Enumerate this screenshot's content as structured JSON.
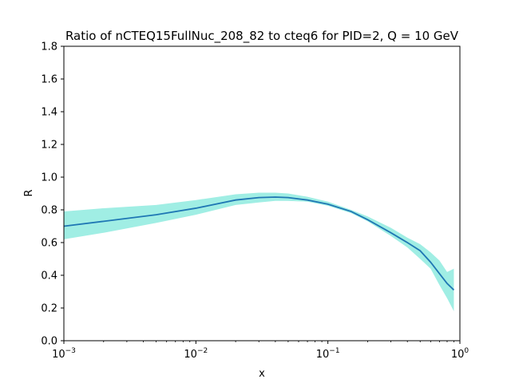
{
  "chart_data": {
    "type": "line",
    "title": "Ratio of nCTEQ15FullNuc_208_82 to cteq6 for PID=2, Q = 10 GeV",
    "xlabel": "x",
    "ylabel": "R",
    "xscale": "log",
    "xlim": [
      0.001,
      1
    ],
    "ylim": [
      0.0,
      1.8
    ],
    "grid": false,
    "x_ticks": [
      {
        "value": 0.001,
        "base": "10",
        "exp": "−3"
      },
      {
        "value": 0.01,
        "base": "10",
        "exp": "−2"
      },
      {
        "value": 0.1,
        "base": "10",
        "exp": "−1"
      },
      {
        "value": 1,
        "base": "10",
        "exp": "0"
      }
    ],
    "y_ticks": [
      "0.0",
      "0.2",
      "0.4",
      "0.6",
      "0.8",
      "1.0",
      "1.2",
      "1.4",
      "1.6",
      "1.8"
    ],
    "colors": {
      "line": "#1f77b4",
      "band": "#a0eee4"
    },
    "series": [
      {
        "x": [
          0.001,
          0.002,
          0.005,
          0.01,
          0.02,
          0.03,
          0.04,
          0.05,
          0.07,
          0.1,
          0.15,
          0.2,
          0.3,
          0.4,
          0.5,
          0.6,
          0.7,
          0.8,
          0.9
        ],
        "y": [
          0.7,
          0.73,
          0.77,
          0.81,
          0.86,
          0.875,
          0.878,
          0.875,
          0.86,
          0.835,
          0.79,
          0.74,
          0.66,
          0.6,
          0.55,
          0.48,
          0.41,
          0.35,
          0.31
        ],
        "lower": [
          0.62,
          0.66,
          0.72,
          0.77,
          0.83,
          0.845,
          0.855,
          0.855,
          0.85,
          0.825,
          0.78,
          0.73,
          0.64,
          0.57,
          0.5,
          0.44,
          0.34,
          0.26,
          0.18
        ],
        "upper": [
          0.79,
          0.81,
          0.83,
          0.86,
          0.895,
          0.905,
          0.905,
          0.9,
          0.88,
          0.85,
          0.8,
          0.76,
          0.69,
          0.63,
          0.59,
          0.54,
          0.49,
          0.42,
          0.44
        ]
      }
    ]
  }
}
